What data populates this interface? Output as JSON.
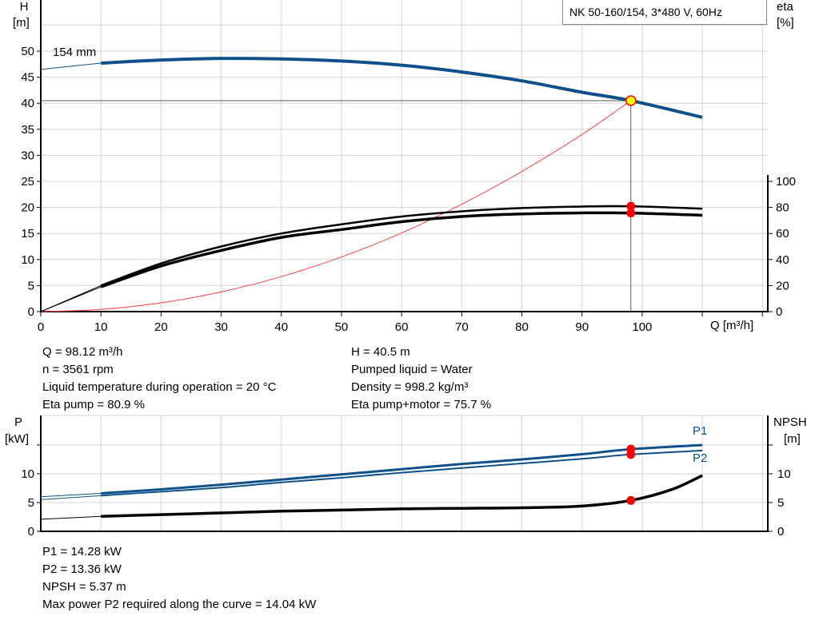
{
  "legend_title": "NK 50-160/154, 3*480 V, 60Hz",
  "chart_data": [
    {
      "type": "line",
      "ylabel": "H",
      "ylabel_unit": "[m]",
      "y2label": "eta",
      "y2label_unit": "[%]",
      "xlabel": "Q [m³/h]",
      "xlim": [
        0,
        120
      ],
      "ylim": [
        0,
        60
      ],
      "y2lim": [
        0,
        100
      ],
      "x_ticks": [
        0,
        10,
        20,
        30,
        40,
        50,
        60,
        70,
        80,
        90,
        100
      ],
      "y_ticks": [
        0,
        5,
        10,
        15,
        20,
        25,
        30,
        35,
        40,
        45,
        50
      ],
      "y2_ticks": [
        0,
        20,
        40,
        60,
        80,
        100
      ],
      "grid": true,
      "annotation": "154 mm",
      "series": [
        {
          "key": "head",
          "axis": "y",
          "color": "#0f4f8a",
          "x": [
            0,
            10,
            20,
            30,
            40,
            50,
            60,
            70,
            80,
            90,
            98.12,
            110
          ],
          "y": [
            46.5,
            47.7,
            48.3,
            48.6,
            48.5,
            48.1,
            47.3,
            46.0,
            44.3,
            42.1,
            40.5,
            37.3
          ]
        },
        {
          "key": "eta_pump",
          "axis": "y2",
          "color": "#000000",
          "x": [
            0,
            10,
            20,
            30,
            40,
            50,
            60,
            70,
            80,
            90,
            98.12,
            110
          ],
          "y": [
            0,
            20,
            37,
            50,
            60,
            67,
            73,
            77,
            79.5,
            80.7,
            80.9,
            79
          ]
        },
        {
          "key": "eta_pump_motor",
          "axis": "y2",
          "color": "#000000",
          "x": [
            0,
            10,
            20,
            30,
            40,
            50,
            60,
            70,
            80,
            90,
            98.12,
            110
          ],
          "y": [
            0,
            19,
            35,
            47,
            57,
            63,
            69,
            73,
            75,
            75.8,
            75.7,
            74
          ]
        },
        {
          "key": "system",
          "axis": "y",
          "color": "#ff4040",
          "x": [
            0,
            10,
            20,
            30,
            40,
            50,
            60,
            70,
            80,
            90,
            98.12
          ],
          "y": [
            0,
            0.42,
            1.68,
            3.78,
            6.72,
            10.5,
            15.1,
            20.6,
            26.9,
            34.0,
            40.5
          ]
        }
      ],
      "operating_point": {
        "Q": 98.12,
        "H": 40.5,
        "eta_pump": 80.9,
        "eta_pump_motor": 75.7
      }
    },
    {
      "type": "line",
      "ylabel": "P",
      "ylabel_unit": "[kW]",
      "y2label": "NPSH",
      "y2label_unit": "[m]",
      "xlim": [
        0,
        120
      ],
      "ylim": [
        0,
        20
      ],
      "y_ticks": [
        0,
        5,
        10
      ],
      "y2_ticks": [
        0,
        5,
        10
      ],
      "grid": true,
      "series": [
        {
          "name": "P1",
          "key": "p1",
          "color": "#0f4f8a",
          "x": [
            0,
            10,
            20,
            30,
            40,
            50,
            60,
            70,
            80,
            90,
            98.12,
            110
          ],
          "y": [
            6.0,
            6.6,
            7.3,
            8.1,
            9.0,
            9.9,
            10.8,
            11.7,
            12.5,
            13.4,
            14.28,
            15.0
          ]
        },
        {
          "name": "P2",
          "key": "p2",
          "color": "#0f4f8a",
          "x": [
            0,
            10,
            20,
            30,
            40,
            50,
            60,
            70,
            80,
            90,
            98.12,
            110
          ],
          "y": [
            5.5,
            6.2,
            6.9,
            7.6,
            8.5,
            9.3,
            10.2,
            11.0,
            11.8,
            12.6,
            13.36,
            14.04
          ]
        },
        {
          "key": "npsh",
          "color": "#000000",
          "x": [
            0,
            10,
            20,
            30,
            40,
            50,
            60,
            70,
            80,
            90,
            98.12,
            105,
            110
          ],
          "y": [
            2.1,
            2.6,
            2.9,
            3.2,
            3.5,
            3.7,
            3.9,
            4.0,
            4.1,
            4.4,
            5.37,
            7.3,
            9.7
          ]
        }
      ],
      "operating_point": {
        "Q": 98.12,
        "P1": 14.28,
        "P2": 13.36,
        "NPSH": 5.37
      }
    }
  ],
  "info_top": {
    "left": [
      "Q = 98.12 m³/h",
      "n = 3561 rpm",
      "Liquid temperature during operation = 20 °C",
      "Eta pump = 80.9 %"
    ],
    "right": [
      "H = 40.5 m",
      "Pumped liquid = Water",
      "Density = 998.2 kg/m³",
      "Eta pump+motor = 75.7 %"
    ]
  },
  "info_bottom": [
    "P1 = 14.28 kW",
    "P2 = 13.36 kW",
    "NPSH = 5.37 m",
    "Max power P2 required along the curve = 14.04 kW"
  ]
}
